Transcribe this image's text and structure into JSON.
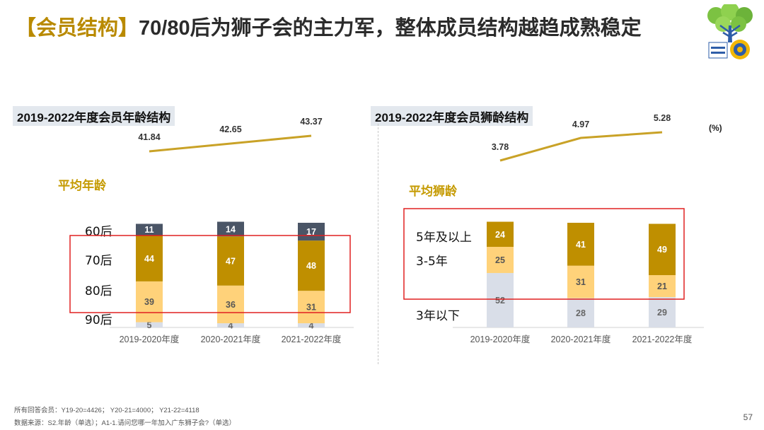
{
  "header": {
    "tag": "【会员结构】",
    "title": "70/80后为狮子会的主力军，整体成员结构越趋成熟稳定"
  },
  "left_panel": {
    "subtitle": "2019-2022年度会员年龄结构",
    "avg_label": "平均年龄",
    "cohort_labels": [
      "60后",
      "70后",
      "80后",
      "90后"
    ]
  },
  "right_panel": {
    "subtitle": "2019-2022年度会员狮龄结构",
    "avg_label": "平均狮龄",
    "unit": "(%)",
    "cohort_labels": [
      "5年及以上",
      "3-5年",
      "3年以下"
    ]
  },
  "colors": {
    "dark_slate": "#4a5566",
    "gold": "#bf8f00",
    "light_gold": "#ffd27a",
    "light_gray": "#d9dee8",
    "line": "#c9a227",
    "highlight": "#e02020"
  },
  "chart_data": [
    {
      "type": "bar",
      "stacked": true,
      "title": "2019-2022年度会员年龄结构",
      "categories": [
        "2019-2020年度",
        "2020-2021年度",
        "2021-2022年度"
      ],
      "series": [
        {
          "name": "90后",
          "color": "#d9dee8",
          "label_color": "#666666",
          "values": [
            5,
            4,
            4
          ]
        },
        {
          "name": "80后",
          "color": "#ffd27a",
          "label_color": "#555555",
          "values": [
            39,
            36,
            31
          ]
        },
        {
          "name": "70后",
          "color": "#bf8f00",
          "label_color": "#ffffff",
          "values": [
            44,
            47,
            48
          ]
        },
        {
          "name": "60后",
          "color": "#4a5566",
          "label_color": "#ffffff",
          "values": [
            11,
            14,
            17
          ]
        }
      ],
      "line": {
        "name": "平均年龄",
        "values": [
          41.84,
          42.65,
          43.37
        ],
        "labels": [
          "41.84",
          "42.65",
          "43.37"
        ]
      }
    },
    {
      "type": "bar",
      "stacked": true,
      "title": "2019-2022年度会员狮龄结构",
      "categories": [
        "2019-2020年度",
        "2020-2021年度",
        "2021-2022年度"
      ],
      "series": [
        {
          "name": "3年以下",
          "color": "#d9dee8",
          "label_color": "#666666",
          "values": [
            52,
            28,
            29
          ]
        },
        {
          "name": "3-5年",
          "color": "#ffd27a",
          "label_color": "#555555",
          "values": [
            25,
            31,
            21
          ]
        },
        {
          "name": "5年及以上",
          "color": "#bf8f00",
          "label_color": "#ffffff",
          "values": [
            24,
            41,
            49
          ]
        }
      ],
      "line": {
        "name": "平均狮龄",
        "values": [
          3.78,
          4.97,
          5.28
        ],
        "labels": [
          "3.78",
          "4.97",
          "5.28"
        ]
      }
    }
  ],
  "footer": {
    "line1": "所有回答会员：Y19-20=4426； Y20-21=4000； Y21-22=4118",
    "line2": "数据来源：S2.年龄（单选）；A1-1.请问您哪一年加入广东狮子会?（单选）"
  },
  "page_number": "57"
}
